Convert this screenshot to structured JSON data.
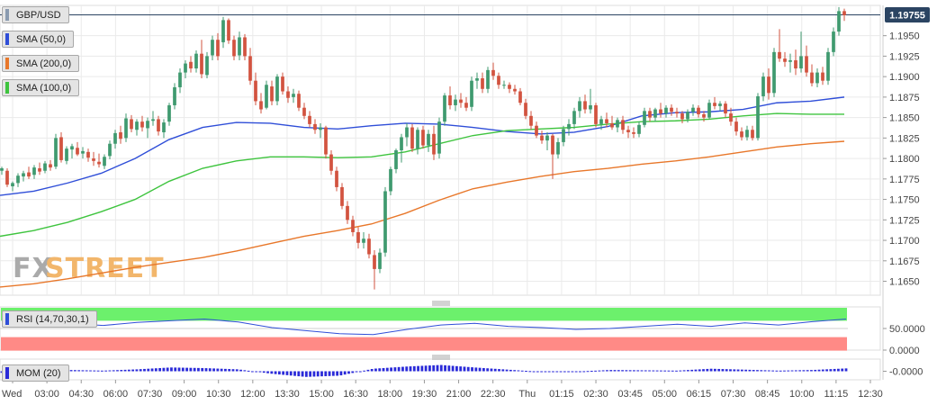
{
  "colors": {
    "up": "#3f9a6f",
    "down": "#d2533f",
    "sma50": "#2f4ed8",
    "sma200": "#e8772a",
    "sma100": "#3ec43e",
    "rsi_line": "#2f4ed8",
    "rsi_overbought": "#6cf06c",
    "rsi_oversold": "#ff8a86",
    "mom": "#2a2ad8",
    "price_badge": "#2b4462",
    "grid": "#eaeaea",
    "watermark_fx": "#aaaaaa",
    "watermark_street": "#f2b66b"
  },
  "labels": {
    "symbol": "GBP/USD",
    "sma50": "SMA (50,0)",
    "sma200": "SMA (200,0)",
    "sma100": "SMA (100,0)",
    "rsi": "RSI (14,70,30,1)",
    "mom": "MOM (20)",
    "last_price": "1.19755",
    "watermark_fx": "FX",
    "watermark_street": "STREET"
  },
  "chart_data": [
    {
      "type": "candlestick",
      "title": "GBP/USD",
      "yticks": [
        "1.1950",
        "1.1925",
        "1.1900",
        "1.1875",
        "1.1850",
        "1.1825",
        "1.1800",
        "1.1775",
        "1.1750",
        "1.1725",
        "1.1700",
        "1.1675",
        "1.1650"
      ],
      "ylim": [
        1.1633,
        1.1987
      ],
      "grid": true,
      "last_price": 1.19755,
      "xticks": [
        "Wed",
        "03:00",
        "04:30",
        "06:00",
        "07:30",
        "09:00",
        "10:30",
        "12:00",
        "13:30",
        "15:00",
        "16:30",
        "18:00",
        "19:30",
        "21:00",
        "22:30",
        "Thu",
        "01:15",
        "02:30",
        "03:45",
        "05:00",
        "06:15",
        "07:30",
        "08:45",
        "10:00",
        "11:15",
        "12:30"
      ],
      "candles": [
        [
          1.1785,
          1.179,
          1.178,
          1.1788
        ],
        [
          1.1785,
          1.1788,
          1.1765,
          1.1768
        ],
        [
          1.1766,
          1.1772,
          1.176,
          1.177
        ],
        [
          1.177,
          1.1782,
          1.1765,
          1.1779
        ],
        [
          1.1778,
          1.1785,
          1.1772,
          1.1782
        ],
        [
          1.1783,
          1.179,
          1.1775,
          1.1778
        ],
        [
          1.178,
          1.1792,
          1.1775,
          1.1789
        ],
        [
          1.1788,
          1.1795,
          1.178,
          1.1784
        ],
        [
          1.1785,
          1.1797,
          1.1782,
          1.1794
        ],
        [
          1.1793,
          1.1798,
          1.1785,
          1.1789
        ],
        [
          1.179,
          1.183,
          1.1787,
          1.1825
        ],
        [
          1.1826,
          1.1832,
          1.1795,
          1.1798
        ],
        [
          1.1797,
          1.1815,
          1.1793,
          1.1812
        ],
        [
          1.1811,
          1.1818,
          1.18,
          1.1815
        ],
        [
          1.1813,
          1.182,
          1.1803,
          1.1805
        ],
        [
          1.1806,
          1.1814,
          1.18,
          1.1809
        ],
        [
          1.1808,
          1.1812,
          1.1796,
          1.1801
        ],
        [
          1.18,
          1.1808,
          1.1791,
          1.1797
        ],
        [
          1.1796,
          1.1806,
          1.1789,
          1.1793
        ],
        [
          1.1791,
          1.1805,
          1.1787,
          1.1802
        ],
        [
          1.1803,
          1.1822,
          1.1799,
          1.1818
        ],
        [
          1.1818,
          1.1835,
          1.1812,
          1.1831
        ],
        [
          1.1832,
          1.184,
          1.1818,
          1.1824
        ],
        [
          1.1825,
          1.1855,
          1.182,
          1.1849
        ],
        [
          1.1848,
          1.1853,
          1.1832,
          1.1836
        ],
        [
          1.1835,
          1.1848,
          1.1828,
          1.1845
        ],
        [
          1.1845,
          1.1852,
          1.1833,
          1.1838
        ],
        [
          1.1837,
          1.185,
          1.1825,
          1.1846
        ],
        [
          1.1846,
          1.1858,
          1.184,
          1.1848
        ],
        [
          1.1848,
          1.1852,
          1.1828,
          1.1833
        ],
        [
          1.1832,
          1.1848,
          1.1825,
          1.1844
        ],
        [
          1.1845,
          1.1868,
          1.184,
          1.1865
        ],
        [
          1.1865,
          1.1892,
          1.186,
          1.1887
        ],
        [
          1.1887,
          1.191,
          1.188,
          1.1905
        ],
        [
          1.1905,
          1.192,
          1.1898,
          1.1916
        ],
        [
          1.1918,
          1.1925,
          1.1905,
          1.191
        ],
        [
          1.191,
          1.1932,
          1.1905,
          1.1928
        ],
        [
          1.1928,
          1.1945,
          1.1898,
          1.1903
        ],
        [
          1.1902,
          1.193,
          1.1898,
          1.1925
        ],
        [
          1.1926,
          1.195,
          1.192,
          1.1945
        ],
        [
          1.1945,
          1.1953,
          1.192,
          1.1925
        ],
        [
          1.1942,
          1.1973,
          1.1935,
          1.1969
        ],
        [
          1.1969,
          1.1971,
          1.194,
          1.1944
        ],
        [
          1.1945,
          1.195,
          1.192,
          1.1925
        ],
        [
          1.1926,
          1.1955,
          1.192,
          1.1948
        ],
        [
          1.1948,
          1.1952,
          1.192,
          1.1925
        ],
        [
          1.1925,
          1.1935,
          1.189,
          1.1895
        ],
        [
          1.1895,
          1.1905,
          1.1865,
          1.187
        ],
        [
          1.187,
          1.188,
          1.1855,
          1.186
        ],
        [
          1.1862,
          1.1895,
          1.186,
          1.189
        ],
        [
          1.1888,
          1.1895,
          1.1865,
          1.187
        ],
        [
          1.187,
          1.1903,
          1.1865,
          1.19
        ],
        [
          1.19,
          1.1905,
          1.1878,
          1.1882
        ],
        [
          1.1882,
          1.1888,
          1.1868,
          1.1874
        ],
        [
          1.1875,
          1.1885,
          1.1868,
          1.1879
        ],
        [
          1.1879,
          1.1883,
          1.1858,
          1.1862
        ],
        [
          1.1862,
          1.1868,
          1.1848,
          1.1852
        ],
        [
          1.1852,
          1.1858,
          1.1838,
          1.1842
        ],
        [
          1.1842,
          1.1848,
          1.183,
          1.1835
        ],
        [
          1.1835,
          1.1843,
          1.1825,
          1.1838
        ],
        [
          1.1838,
          1.184,
          1.18,
          1.1805
        ],
        [
          1.1805,
          1.181,
          1.178,
          1.1785
        ],
        [
          1.1785,
          1.179,
          1.176,
          1.1765
        ],
        [
          1.1765,
          1.177,
          1.1738,
          1.1742
        ],
        [
          1.1742,
          1.1748,
          1.172,
          1.1725
        ],
        [
          1.1725,
          1.173,
          1.1705,
          1.171
        ],
        [
          1.171,
          1.1716,
          1.169,
          1.1697
        ],
        [
          1.1697,
          1.171,
          1.169,
          1.1702
        ],
        [
          1.1702,
          1.1708,
          1.1678,
          1.1683
        ],
        [
          1.1682,
          1.1688,
          1.164,
          1.1665
        ],
        [
          1.1665,
          1.169,
          1.166,
          1.1685
        ],
        [
          1.1685,
          1.1765,
          1.168,
          1.176
        ],
        [
          1.176,
          1.179,
          1.1755,
          1.1787
        ],
        [
          1.1787,
          1.1812,
          1.1782,
          1.181
        ],
        [
          1.181,
          1.183,
          1.1795,
          1.1826
        ],
        [
          1.1826,
          1.1843,
          1.1815,
          1.1838
        ],
        [
          1.1838,
          1.1842,
          1.1808,
          1.1812
        ],
        [
          1.1812,
          1.1838,
          1.1805,
          1.1835
        ],
        [
          1.1835,
          1.184,
          1.1812,
          1.1816
        ],
        [
          1.1816,
          1.1835,
          1.1808,
          1.183
        ],
        [
          1.183,
          1.184,
          1.1798,
          1.1805
        ],
        [
          1.1806,
          1.185,
          1.18,
          1.1845
        ],
        [
          1.1845,
          1.188,
          1.184,
          1.1877
        ],
        [
          1.1877,
          1.1888,
          1.186,
          1.1865
        ],
        [
          1.1865,
          1.1878,
          1.1858,
          1.1872
        ],
        [
          1.1872,
          1.188,
          1.1862,
          1.1868
        ],
        [
          1.1868,
          1.1875,
          1.1858,
          1.1862
        ],
        [
          1.1863,
          1.19,
          1.1858,
          1.1895
        ],
        [
          1.1895,
          1.1905,
          1.1885,
          1.1898
        ],
        [
          1.1898,
          1.1905,
          1.188,
          1.1885
        ],
        [
          1.1885,
          1.1912,
          1.188,
          1.1908
        ],
        [
          1.1908,
          1.1917,
          1.1896,
          1.1901
        ],
        [
          1.1901,
          1.1905,
          1.1885,
          1.189
        ],
        [
          1.189,
          1.1895,
          1.1885,
          1.189
        ],
        [
          1.189,
          1.1893,
          1.188,
          1.1885
        ],
        [
          1.1885,
          1.189,
          1.1878,
          1.1882
        ],
        [
          1.1882,
          1.1886,
          1.1865,
          1.1868
        ],
        [
          1.1868,
          1.1873,
          1.1848,
          1.1852
        ],
        [
          1.1852,
          1.1858,
          1.1835,
          1.184
        ],
        [
          1.184,
          1.1845,
          1.1825,
          1.1828
        ],
        [
          1.1828,
          1.1834,
          1.1818,
          1.1822
        ],
        [
          1.1822,
          1.1832,
          1.181,
          1.1828
        ],
        [
          1.1828,
          1.183,
          1.1775,
          1.1805
        ],
        [
          1.1805,
          1.1825,
          1.18,
          1.182
        ],
        [
          1.182,
          1.184,
          1.1815,
          1.1836
        ],
        [
          1.1836,
          1.1848,
          1.1828,
          1.1842
        ],
        [
          1.1842,
          1.1862,
          1.1836,
          1.1858
        ],
        [
          1.1858,
          1.1875,
          1.185,
          1.187
        ],
        [
          1.187,
          1.1878,
          1.1855,
          1.186
        ],
        [
          1.186,
          1.1885,
          1.1855,
          1.1865
        ],
        [
          1.1865,
          1.1868,
          1.1838,
          1.1842
        ],
        [
          1.1842,
          1.1852,
          1.1835,
          1.1848
        ],
        [
          1.1848,
          1.1856,
          1.1838,
          1.1843
        ],
        [
          1.1843,
          1.1852,
          1.1835,
          1.1838
        ],
        [
          1.1838,
          1.185,
          1.1832,
          1.1847
        ],
        [
          1.1847,
          1.1852,
          1.183,
          1.1835
        ],
        [
          1.1835,
          1.184,
          1.1825,
          1.1832
        ],
        [
          1.1832,
          1.1838,
          1.1825,
          1.183
        ],
        [
          1.183,
          1.1845,
          1.1826,
          1.1841
        ],
        [
          1.1841,
          1.1862,
          1.1838,
          1.1858
        ],
        [
          1.1858,
          1.1862,
          1.1845,
          1.185
        ],
        [
          1.185,
          1.1862,
          1.1845,
          1.186
        ],
        [
          1.186,
          1.1868,
          1.185,
          1.1855
        ],
        [
          1.1855,
          1.1865,
          1.185,
          1.1862
        ],
        [
          1.1862,
          1.1866,
          1.1852,
          1.1857
        ],
        [
          1.1857,
          1.1862,
          1.185,
          1.1855
        ],
        [
          1.1855,
          1.1858,
          1.1843,
          1.1848
        ],
        [
          1.1848,
          1.186,
          1.1844,
          1.1857
        ],
        [
          1.1857,
          1.1866,
          1.1852,
          1.1862
        ],
        [
          1.1862,
          1.1865,
          1.185,
          1.1854
        ],
        [
          1.1854,
          1.1858,
          1.1845,
          1.185
        ],
        [
          1.185,
          1.1872,
          1.1848,
          1.1868
        ],
        [
          1.1868,
          1.1875,
          1.186,
          1.1864
        ],
        [
          1.1864,
          1.187,
          1.1858,
          1.1867
        ],
        [
          1.1867,
          1.187,
          1.185,
          1.1855
        ],
        [
          1.1855,
          1.1862,
          1.184,
          1.1845
        ],
        [
          1.1845,
          1.185,
          1.1828,
          1.1833
        ],
        [
          1.1833,
          1.1838,
          1.1822,
          1.1826
        ],
        [
          1.1826,
          1.184,
          1.1822,
          1.1835
        ],
        [
          1.1835,
          1.184,
          1.1822,
          1.1825
        ],
        [
          1.1825,
          1.188,
          1.1822,
          1.1876
        ],
        [
          1.1876,
          1.1905,
          1.187,
          1.19
        ],
        [
          1.19,
          1.191,
          1.1872,
          1.188
        ],
        [
          1.188,
          1.1935,
          1.1875,
          1.193
        ],
        [
          1.193,
          1.1958,
          1.1918,
          1.1922
        ],
        [
          1.1922,
          1.193,
          1.1912,
          1.1918
        ],
        [
          1.1918,
          1.1928,
          1.1905,
          1.192
        ],
        [
          1.192,
          1.1933,
          1.1902,
          1.191
        ],
        [
          1.191,
          1.1955,
          1.1905,
          1.1925
        ],
        [
          1.1925,
          1.1938,
          1.19,
          1.1905
        ],
        [
          1.1905,
          1.1915,
          1.1888,
          1.1892
        ],
        [
          1.1892,
          1.191,
          1.1887,
          1.1905
        ],
        [
          1.1905,
          1.1912,
          1.189,
          1.1895
        ],
        [
          1.1895,
          1.1935,
          1.189,
          1.193
        ],
        [
          1.193,
          1.196,
          1.1925,
          1.1955
        ],
        [
          1.1955,
          1.1985,
          1.195,
          1.198
        ],
        [
          1.198,
          1.1983,
          1.1968,
          1.1975
        ]
      ],
      "series": [
        {
          "name": "SMA (50,0)",
          "values": [
            1.1755,
            1.176,
            1.177,
            1.1782,
            1.18,
            1.1823,
            1.1838,
            1.1844,
            1.1843,
            1.1838,
            1.1836,
            1.184,
            1.1843,
            1.1842,
            1.1838,
            1.1833,
            1.183,
            1.1832,
            1.1839,
            1.1852,
            1.1856,
            1.1857,
            1.186,
            1.1868,
            1.187,
            1.1875
          ]
        },
        {
          "name": "SMA (100,0)",
          "values": [
            1.1705,
            1.1712,
            1.1722,
            1.1735,
            1.175,
            1.1772,
            1.1788,
            1.1797,
            1.1802,
            1.1802,
            1.1801,
            1.1802,
            1.1808,
            1.1818,
            1.1828,
            1.1834,
            1.1836,
            1.1838,
            1.1842,
            1.1845,
            1.1846,
            1.1848,
            1.1852,
            1.1855,
            1.1854,
            1.1854
          ]
        },
        {
          "name": "SMA (200,0)",
          "values": [
            1.1643,
            1.1647,
            1.1653,
            1.166,
            1.1667,
            1.1673,
            1.1679,
            1.1687,
            1.1696,
            1.1705,
            1.1712,
            1.172,
            1.1733,
            1.1749,
            1.1763,
            1.1771,
            1.1778,
            1.1784,
            1.1788,
            1.1793,
            1.1797,
            1.1802,
            1.1808,
            1.1814,
            1.1818,
            1.1821
          ]
        }
      ]
    },
    {
      "type": "line",
      "title": "RSI (14,70,30,1)",
      "yticks": [
        "50.0000",
        "0.0000"
      ],
      "ylim": [
        0,
        100
      ],
      "overbought": 70,
      "oversold": 30,
      "series": [
        {
          "name": "RSI (14,70,30,1)",
          "values": [
            55,
            58,
            62,
            57,
            64,
            68,
            72,
            65,
            52,
            45,
            38,
            36,
            48,
            58,
            62,
            55,
            52,
            48,
            50,
            55,
            60,
            55,
            63,
            58,
            66,
            72
          ]
        }
      ]
    },
    {
      "type": "bar",
      "title": "MOM (20)",
      "yticks": [
        "-0.0000"
      ],
      "series": [
        {
          "name": "MOM (20)",
          "values": [
            -0.0005,
            0.0006,
            0.0004,
            0.0002,
            0.0006,
            0.0012,
            0.001,
            0.0006,
            -0.0008,
            -0.0018,
            -0.0014,
            0.0008,
            0.0015,
            0.002,
            0.0012,
            0.0005,
            -0.0002,
            -0.0001,
            0.0004,
            0.0003,
            0.0002,
            0.0008,
            0.0005,
            0.0002,
            0.0004,
            0.0009
          ]
        }
      ]
    }
  ]
}
